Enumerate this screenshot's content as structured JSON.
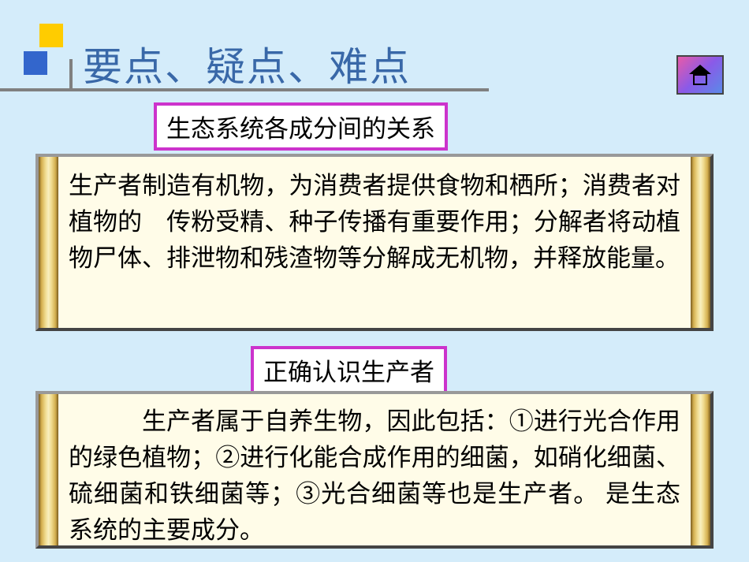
{
  "title": "要点、疑点、难点",
  "subtitle1": "生态系统各成分间的关系",
  "subtitle2": "正确认识生产者",
  "content1": "生产者制造有机物，为消费者提供食物和栖所；消费者对植物的　传粉受精、种子传播有重要作用；分解者将动植物尸体、排泄物和残渣物等分解成无机物，并释放能量。",
  "content2": "生产者属于自养生物，因此包括：①进行光合作用的绿色植物；②进行化能合成作用的细菌，如硝化细菌、硫细菌和铁细菌等；③光合细菌等也是生产者。 是生态系统的主要成分。",
  "colors": {
    "background": "#d4ecfa",
    "title_color": "#3968a8",
    "subtitle_border": "#cc33cc",
    "content_bg": "#fffce8",
    "bullet_yellow": "#ffcc00",
    "bullet_blue": "#3366cc"
  },
  "fonts": {
    "title_size": 50,
    "subtitle_size": 31,
    "content_size": 31
  }
}
